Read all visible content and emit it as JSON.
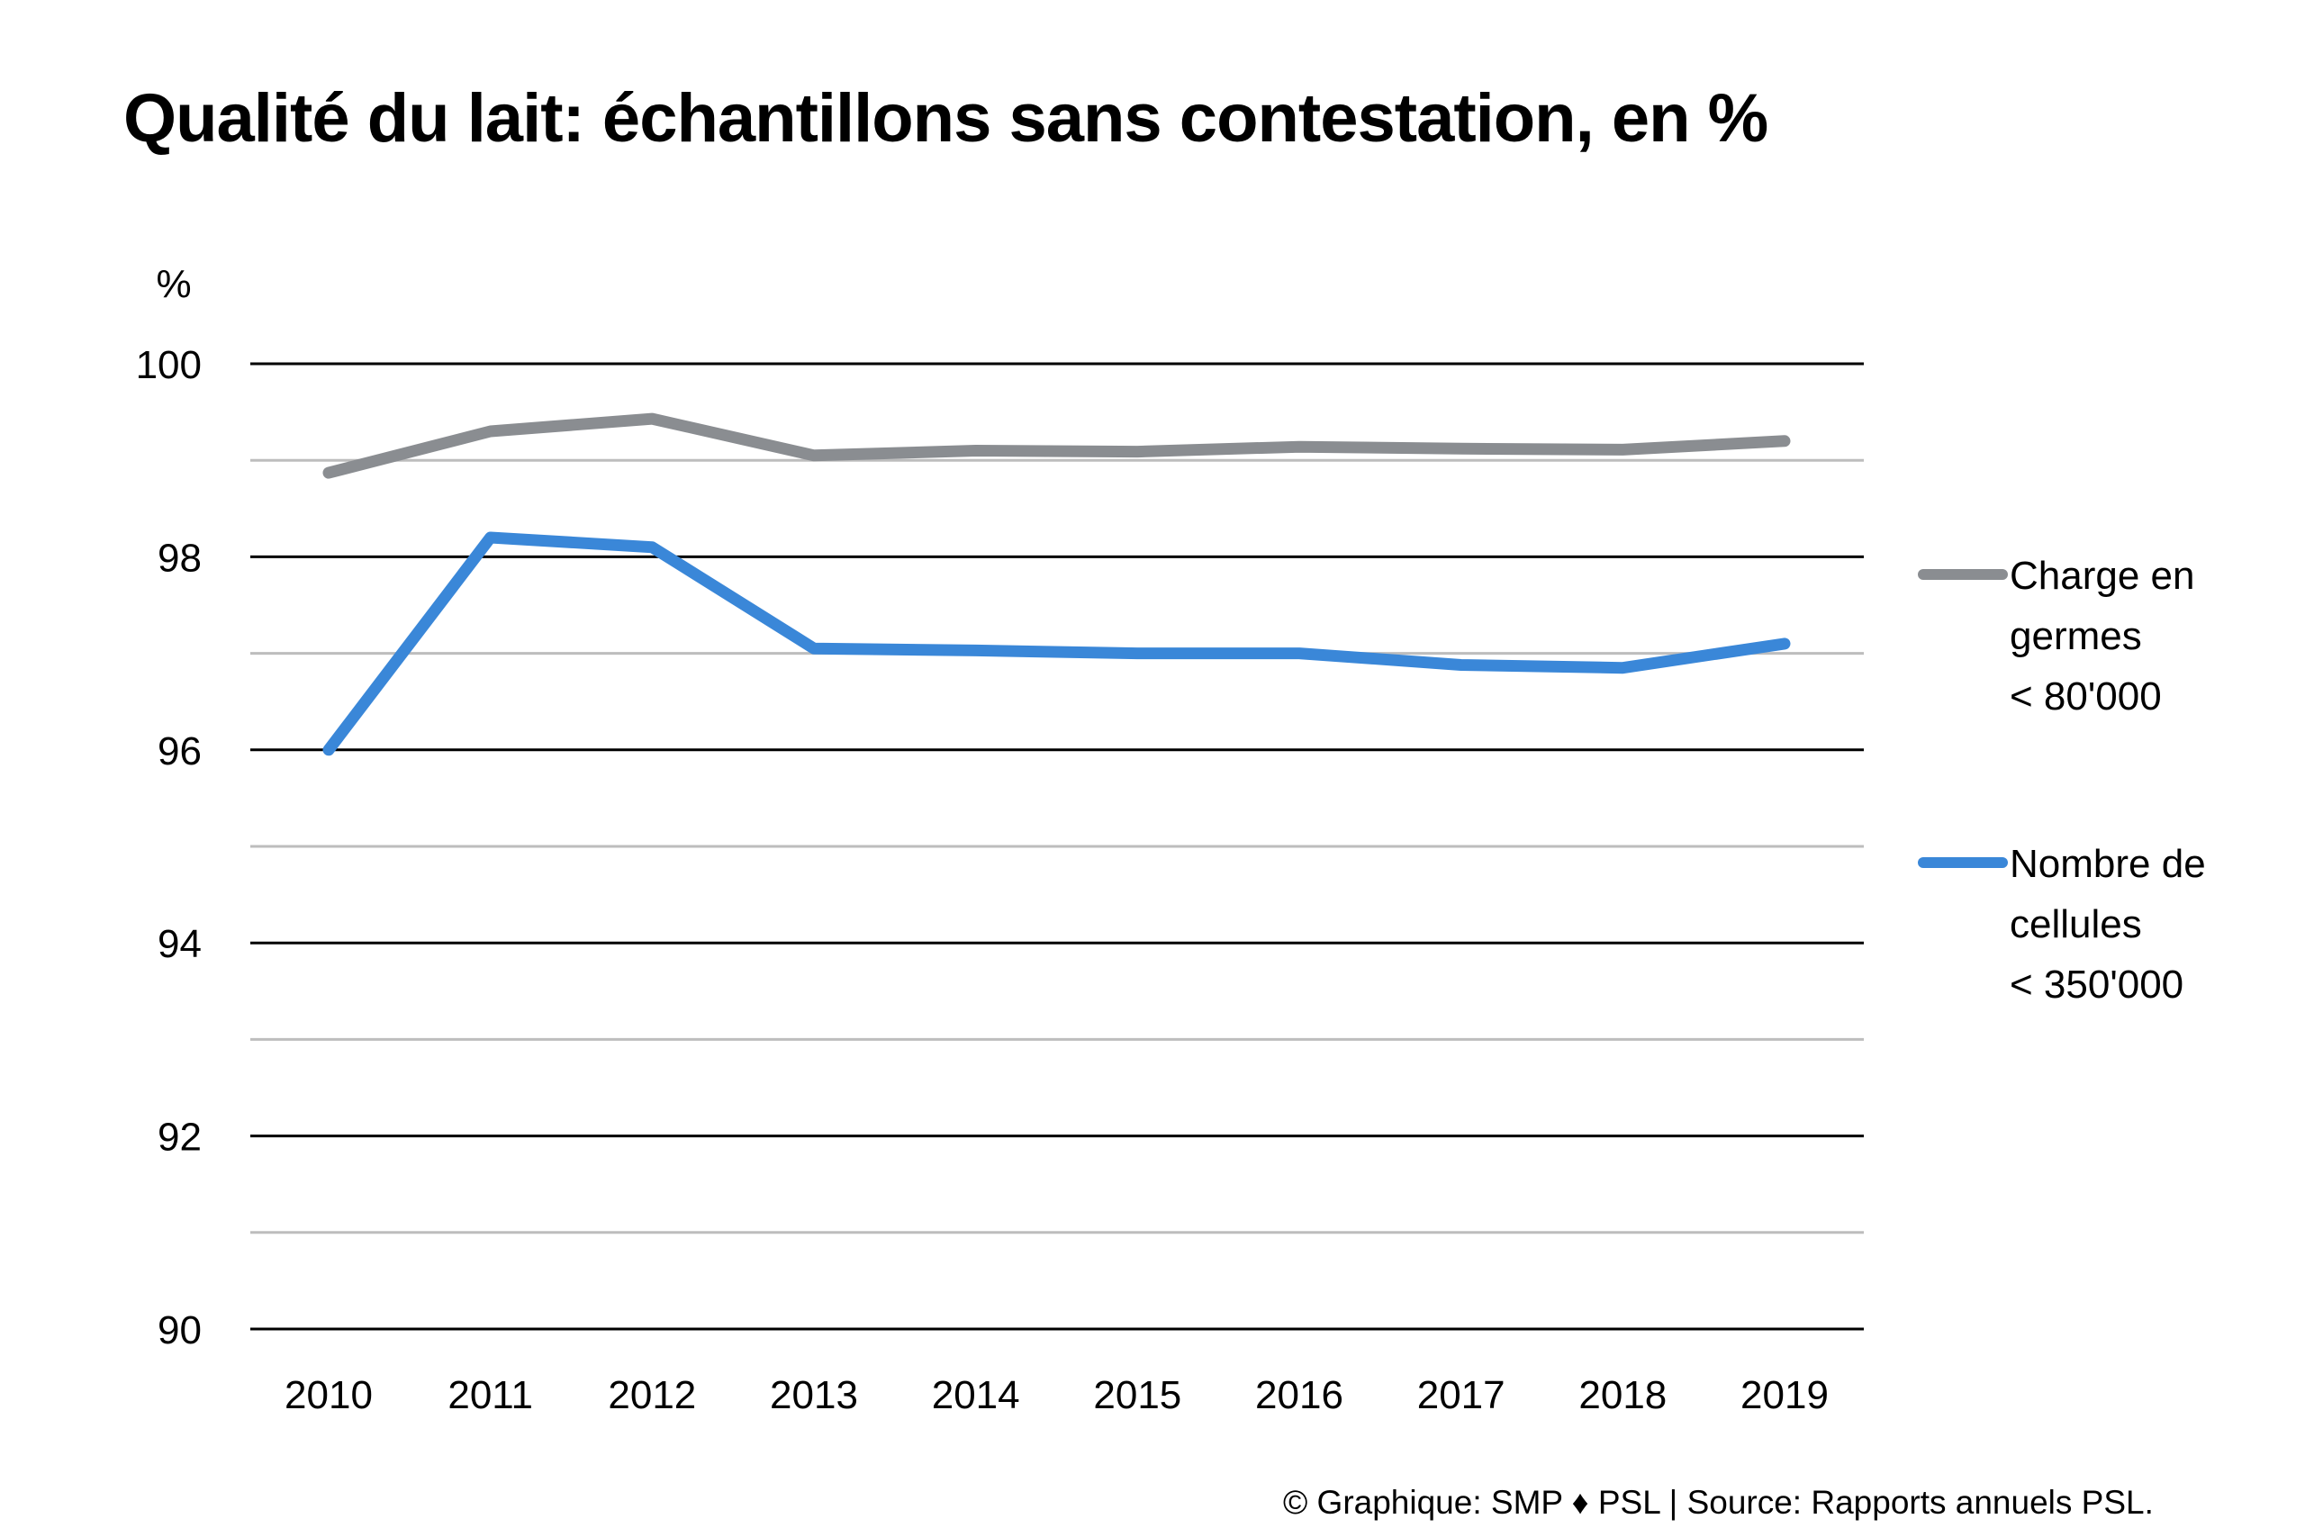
{
  "chart_data": {
    "type": "line",
    "title": "Qualité du lait: échantillons sans contestation, en %",
    "ylabel": "%",
    "xlabel": "",
    "x": [
      "2010",
      "2011",
      "2012",
      "2013",
      "2014",
      "2015",
      "2016",
      "2017",
      "2018",
      "2019"
    ],
    "ylim": [
      90,
      100
    ],
    "y_ticks": [
      "100",
      "98",
      "96",
      "94",
      "92",
      "90"
    ],
    "minor_gridlines": true,
    "legend_position": "right",
    "series": [
      {
        "name_lines": [
          "Charge en",
          "germes",
          "< 80'000"
        ],
        "color": "#8a8d91",
        "values": [
          98.87,
          99.3,
          99.43,
          99.05,
          99.1,
          99.09,
          99.14,
          99.12,
          99.11,
          99.2
        ]
      },
      {
        "name_lines": [
          "Nombre de",
          "cellules",
          "< 350'000"
        ],
        "color": "#3a87d8",
        "values": [
          96.0,
          98.2,
          98.1,
          97.05,
          97.03,
          97.0,
          97.0,
          96.88,
          96.85,
          97.1
        ]
      }
    ]
  },
  "footer": "© Graphique: SMP ♦ PSL | Source: Rapports annuels PSL."
}
